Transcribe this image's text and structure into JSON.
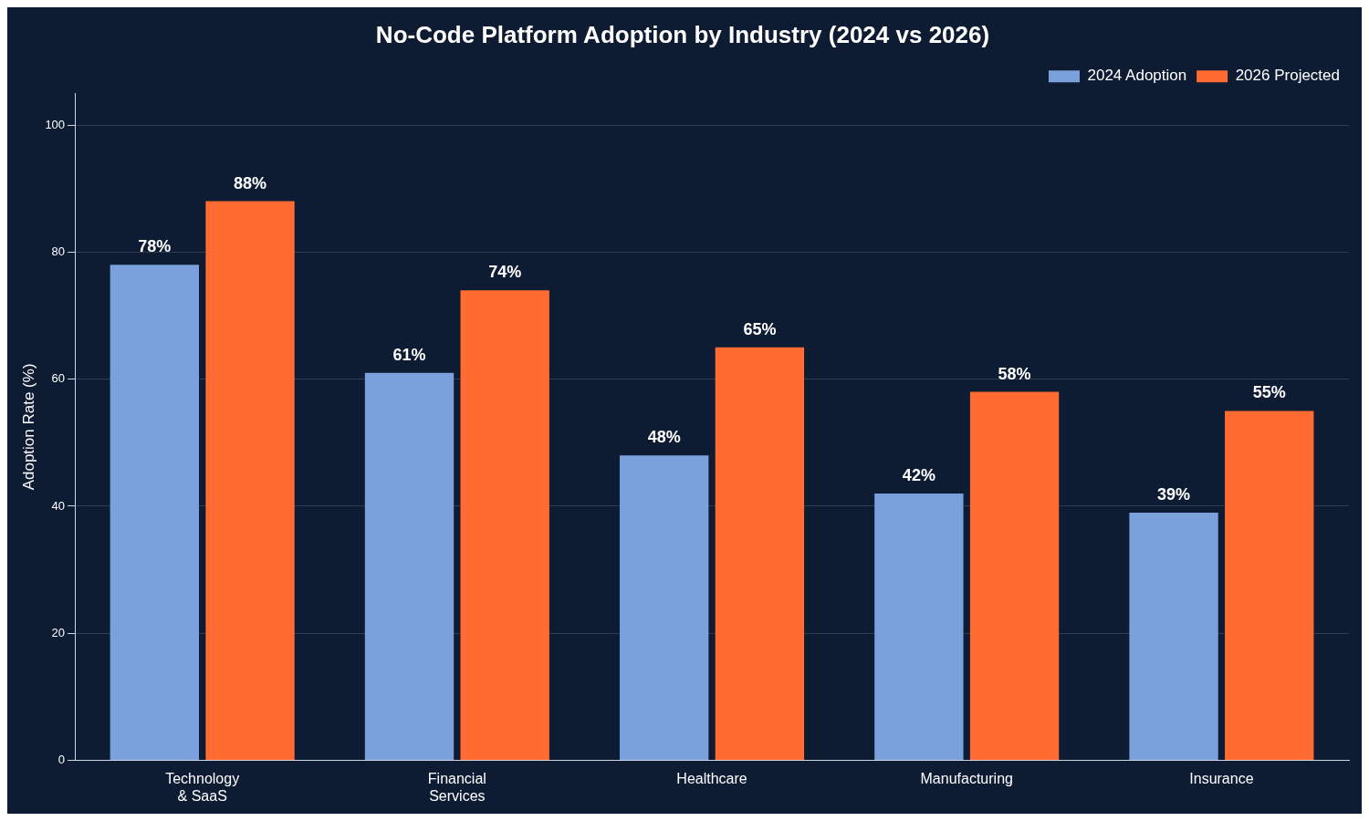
{
  "chart_data": {
    "type": "bar",
    "title": "No-Code Platform Adoption by Industry (2024 vs 2026)",
    "ylabel": "Adoption Rate (%)",
    "categories": [
      "Technology\n& SaaS",
      "Financial\nServices",
      "Healthcare",
      "Manufacturing",
      "Insurance"
    ],
    "series": [
      {
        "name": "2024 Adoption",
        "color": "#7aa1dc",
        "values": [
          78,
          61,
          48,
          42,
          39
        ],
        "value_labels": [
          "78%",
          "61%",
          "48%",
          "42%",
          "39%"
        ]
      },
      {
        "name": "2026 Projected",
        "color": "#ff6b30",
        "values": [
          88,
          74,
          65,
          58,
          55
        ],
        "value_labels": [
          "88%",
          "74%",
          "65%",
          "58%",
          "55%"
        ]
      }
    ],
    "ylim": [
      0,
      105
    ],
    "yticks": [
      0,
      20,
      40,
      60,
      80,
      100
    ],
    "grid": "y",
    "legend": "top right"
  }
}
